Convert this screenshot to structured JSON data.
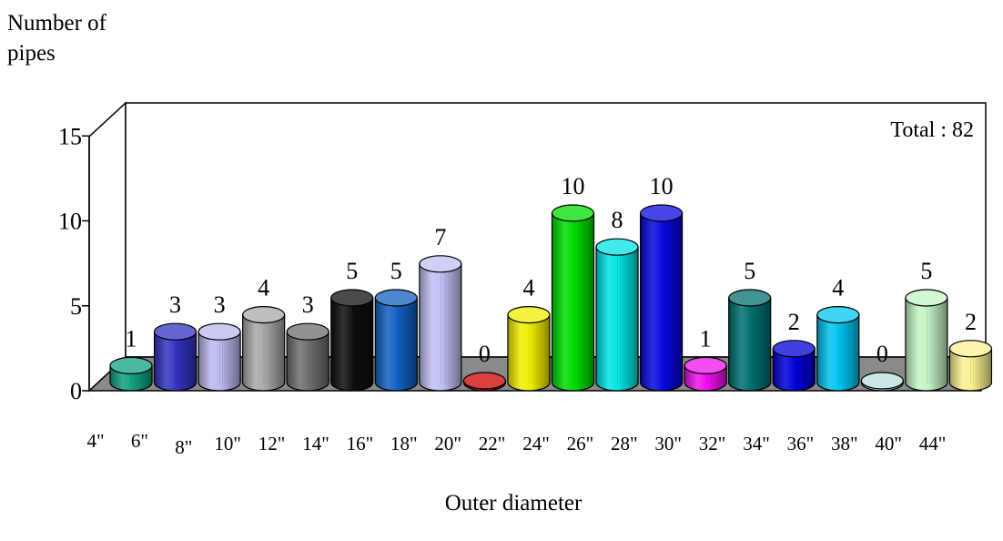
{
  "chart_data": {
    "type": "bar",
    "ylabel_line1": "Number of",
    "ylabel_line2": "pipes",
    "xlabel": "Outer diameter",
    "annotation": "Total : 82",
    "ylim": [
      0,
      15
    ],
    "yticks": [
      "15",
      "10",
      "5",
      "0"
    ],
    "grid": false,
    "categories": [
      "4\"",
      "6\"",
      "8\"",
      "10\"",
      "12\"",
      "14\"",
      "16\"",
      "18\"",
      "20\"",
      "22\"",
      "24\"",
      "26\"",
      "28\"",
      "30\"",
      "32\"",
      "34\"",
      "36\"",
      "38\"",
      "40\"",
      "44\""
    ],
    "values": [
      1,
      3,
      3,
      4,
      3,
      5,
      5,
      7,
      0,
      4,
      10,
      8,
      10,
      1,
      5,
      2,
      4,
      0,
      5,
      2
    ],
    "colors": [
      "#10a080",
      "#3333c0",
      "#b8b8ee",
      "#a8a8a8",
      "#6e6e6e",
      "#0e0e0e",
      "#1060c0",
      "#c0c0f4",
      "#cc0000",
      "#eeee00",
      "#00dd00",
      "#00e4e4",
      "#0808e0",
      "#ee10ee",
      "#007070",
      "#0000d8",
      "#00c4f0",
      "#b8dcdc",
      "#c4f4c4",
      "#f8f090"
    ]
  }
}
